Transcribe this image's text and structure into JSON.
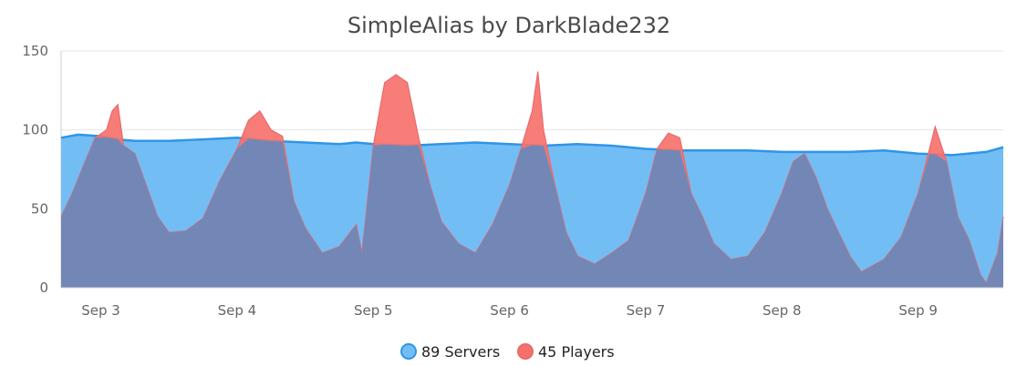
{
  "chart_data": {
    "type": "area",
    "title": "SimpleAlias by DarkBlade232",
    "xlabel": "",
    "ylabel": "",
    "x_range": [
      "Sep 2 17:00",
      "Sep 9 15:00"
    ],
    "x_ticks": [
      "Sep 3",
      "Sep 4",
      "Sep 5",
      "Sep 6",
      "Sep 7",
      "Sep 8",
      "Sep 9"
    ],
    "ylim": [
      0,
      150
    ],
    "y_ticks": [
      0,
      50,
      100,
      150
    ],
    "grid": true,
    "legend_position": "bottom-center",
    "series": [
      {
        "name": "89 Servers",
        "color": "#2f95e6",
        "fill": "#73bdf5",
        "points": [
          [
            "Sep 2 17:00",
            95
          ],
          [
            "Sep 2 20:00",
            97
          ],
          [
            "Sep 3 00:00",
            96
          ],
          [
            "Sep 3 03:00",
            94
          ],
          [
            "Sep 3 06:00",
            93
          ],
          [
            "Sep 3 12:00",
            93
          ],
          [
            "Sep 3 18:00",
            94
          ],
          [
            "Sep 4 00:00",
            95
          ],
          [
            "Sep 4 06:00",
            93
          ],
          [
            "Sep 4 12:00",
            92
          ],
          [
            "Sep 4 18:00",
            91
          ],
          [
            "Sep 4 21:00",
            92
          ],
          [
            "Sep 5 00:00",
            91
          ],
          [
            "Sep 5 06:00",
            90
          ],
          [
            "Sep 5 12:00",
            91
          ],
          [
            "Sep 5 18:00",
            92
          ],
          [
            "Sep 6 00:00",
            91
          ],
          [
            "Sep 6 06:00",
            90
          ],
          [
            "Sep 6 12:00",
            91
          ],
          [
            "Sep 6 18:00",
            90
          ],
          [
            "Sep 7 00:00",
            88
          ],
          [
            "Sep 7 06:00",
            87
          ],
          [
            "Sep 7 12:00",
            87
          ],
          [
            "Sep 7 18:00",
            87
          ],
          [
            "Sep 8 00:00",
            86
          ],
          [
            "Sep 8 06:00",
            86
          ],
          [
            "Sep 8 12:00",
            86
          ],
          [
            "Sep 8 18:00",
            87
          ],
          [
            "Sep 9 00:00",
            85
          ],
          [
            "Sep 9 06:00",
            84
          ],
          [
            "Sep 9 12:00",
            86
          ],
          [
            "Sep 9 15:00",
            89
          ]
        ]
      },
      {
        "name": "45 Players",
        "color": "#e86b6b",
        "fill": "#f7716b",
        "points": [
          [
            "Sep 2 17:00",
            45
          ],
          [
            "Sep 2 19:00",
            60
          ],
          [
            "Sep 2 21:00",
            78
          ],
          [
            "Sep 2 23:00",
            95
          ],
          [
            "Sep 3 01:00",
            100
          ],
          [
            "Sep 3 02:00",
            112
          ],
          [
            "Sep 3 03:00",
            116
          ],
          [
            "Sep 3 04:00",
            90
          ],
          [
            "Sep 3 06:00",
            85
          ],
          [
            "Sep 3 08:00",
            65
          ],
          [
            "Sep 3 10:00",
            45
          ],
          [
            "Sep 3 12:00",
            35
          ],
          [
            "Sep 3 15:00",
            36
          ],
          [
            "Sep 3 18:00",
            44
          ],
          [
            "Sep 3 21:00",
            68
          ],
          [
            "Sep 4 00:00",
            88
          ],
          [
            "Sep 4 02:00",
            106
          ],
          [
            "Sep 4 04:00",
            112
          ],
          [
            "Sep 4 06:00",
            100
          ],
          [
            "Sep 4 08:00",
            96
          ],
          [
            "Sep 4 10:00",
            55
          ],
          [
            "Sep 4 12:00",
            38
          ],
          [
            "Sep 4 15:00",
            22
          ],
          [
            "Sep 4 18:00",
            26
          ],
          [
            "Sep 4 21:00",
            40
          ],
          [
            "Sep 4 22:00",
            22
          ],
          [
            "Sep 5 00:00",
            90
          ],
          [
            "Sep 5 02:00",
            130
          ],
          [
            "Sep 5 04:00",
            135
          ],
          [
            "Sep 5 06:00",
            130
          ],
          [
            "Sep 5 08:00",
            95
          ],
          [
            "Sep 5 10:00",
            65
          ],
          [
            "Sep 5 12:00",
            42
          ],
          [
            "Sep 5 15:00",
            28
          ],
          [
            "Sep 5 18:00",
            22
          ],
          [
            "Sep 5 21:00",
            40
          ],
          [
            "Sep 6 00:00",
            65
          ],
          [
            "Sep 6 02:00",
            88
          ],
          [
            "Sep 6 04:00",
            112
          ],
          [
            "Sep 6 05:00",
            137
          ],
          [
            "Sep 6 06:00",
            100
          ],
          [
            "Sep 6 08:00",
            65
          ],
          [
            "Sep 6 10:00",
            35
          ],
          [
            "Sep 6 12:00",
            20
          ],
          [
            "Sep 6 15:00",
            15
          ],
          [
            "Sep 6 18:00",
            22
          ],
          [
            "Sep 6 21:00",
            30
          ],
          [
            "Sep 7 00:00",
            60
          ],
          [
            "Sep 7 02:00",
            88
          ],
          [
            "Sep 7 04:00",
            98
          ],
          [
            "Sep 7 06:00",
            95
          ],
          [
            "Sep 7 08:00",
            60
          ],
          [
            "Sep 7 10:00",
            45
          ],
          [
            "Sep 7 12:00",
            28
          ],
          [
            "Sep 7 15:00",
            18
          ],
          [
            "Sep 7 18:00",
            20
          ],
          [
            "Sep 7 21:00",
            35
          ],
          [
            "Sep 8 00:00",
            60
          ],
          [
            "Sep 8 02:00",
            80
          ],
          [
            "Sep 8 04:00",
            85
          ],
          [
            "Sep 8 06:00",
            70
          ],
          [
            "Sep 8 08:00",
            50
          ],
          [
            "Sep 8 10:00",
            35
          ],
          [
            "Sep 8 12:00",
            20
          ],
          [
            "Sep 8 14:00",
            10
          ],
          [
            "Sep 8 18:00",
            18
          ],
          [
            "Sep 8 21:00",
            32
          ],
          [
            "Sep 9 00:00",
            60
          ],
          [
            "Sep 9 02:00",
            88
          ],
          [
            "Sep 9 03:00",
            102
          ],
          [
            "Sep 9 05:00",
            80
          ],
          [
            "Sep 9 07:00",
            45
          ],
          [
            "Sep 9 09:00",
            30
          ],
          [
            "Sep 9 11:00",
            8
          ],
          [
            "Sep 9 12:00",
            3
          ],
          [
            "Sep 9 14:00",
            22
          ],
          [
            "Sep 9 15:00",
            45
          ]
        ]
      }
    ]
  }
}
